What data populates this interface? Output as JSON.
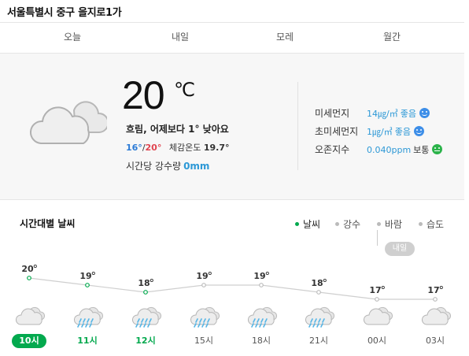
{
  "location": "서울특별시 중구 을지로1가",
  "tabs": [
    {
      "label": "오늘",
      "active": true
    },
    {
      "label": "내일",
      "active": false
    },
    {
      "label": "모레",
      "active": false
    },
    {
      "label": "월간",
      "active": false
    }
  ],
  "current": {
    "weather_icon": "cloud-icon",
    "temperature": "20",
    "unit": "℃",
    "description": "흐림, 어제보다 1° 낮아요",
    "min": "16°",
    "max": "20°",
    "separator": "/",
    "feels_like_label": "체감온도",
    "feels_like": "19.7°",
    "rain_label": "시간당 강수량",
    "rain_value": "0mm"
  },
  "air": [
    {
      "label": "미세먼지",
      "value": "14㎍/㎥",
      "status": "좋음",
      "level": "good",
      "color": "#3d8ee8"
    },
    {
      "label": "초미세먼지",
      "value": "1㎍/㎥",
      "status": "좋음",
      "level": "good",
      "color": "#3d8ee8"
    },
    {
      "label": "오존지수",
      "value": "0.040ppm",
      "status": "보통",
      "level": "normal",
      "color": "#2bb34a"
    }
  ],
  "hourly": {
    "title": "시간대별 날씨",
    "legend": [
      {
        "label": "날씨",
        "active": true
      },
      {
        "label": "강수",
        "active": false
      },
      {
        "label": "바람",
        "active": false
      },
      {
        "label": "습도",
        "active": false
      }
    ],
    "tomorrow_badge": "내일",
    "accent_color": "#03a94e",
    "hours": [
      {
        "time": "10시",
        "temp": "20",
        "icon": "cloud-icon",
        "state": "now"
      },
      {
        "time": "11시",
        "temp": "19",
        "icon": "rain-cloud-icon",
        "state": "today"
      },
      {
        "time": "12시",
        "temp": "18",
        "icon": "rain-cloud-icon",
        "state": "today"
      },
      {
        "time": "15시",
        "temp": "19",
        "icon": "rain-cloud-icon",
        "state": ""
      },
      {
        "time": "18시",
        "temp": "19",
        "icon": "rain-cloud-icon",
        "state": ""
      },
      {
        "time": "21시",
        "temp": "18",
        "icon": "rain-cloud-icon",
        "state": ""
      },
      {
        "time": "00시",
        "temp": "17",
        "icon": "cloud-icon",
        "state": ""
      },
      {
        "time": "03시",
        "temp": "17",
        "icon": "cloud-icon",
        "state": ""
      }
    ]
  }
}
